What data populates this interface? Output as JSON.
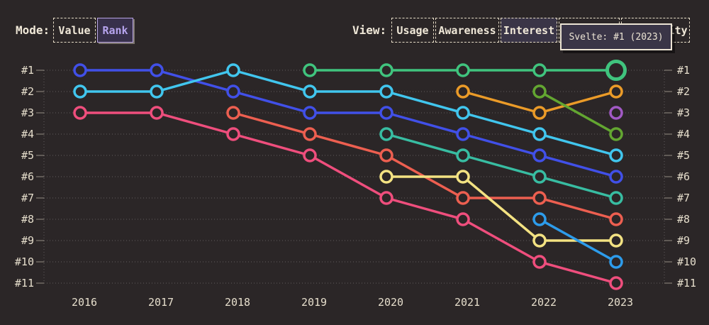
{
  "page": {
    "background": "#2b2627"
  },
  "header": {
    "mode": {
      "label": "Mode:",
      "options": [
        {
          "label": "Value",
          "selected": false
        },
        {
          "label": "Rank",
          "selected": true
        }
      ]
    },
    "view": {
      "label": "View:",
      "options": [
        {
          "label": "Usage",
          "selected": false
        },
        {
          "label": "Awareness",
          "selected": false
        },
        {
          "label": "Interest",
          "selected": true
        },
        {
          "label": "",
          "selected": false
        },
        {
          "label": "Positivity",
          "selected": false
        }
      ]
    }
  },
  "tooltip": {
    "text": "Svelte: #1 (2023)"
  },
  "chart_data": {
    "type": "line",
    "subtype": "bump-rank-chart",
    "x": [
      2016,
      2017,
      2018,
      2019,
      2020,
      2021,
      2022,
      2023
    ],
    "rank_labels": [
      "#1",
      "#2",
      "#3",
      "#4",
      "#5",
      "#6",
      "#7",
      "#8",
      "#9",
      "#10",
      "#11"
    ],
    "ylim": [
      1,
      11
    ],
    "y_axis_inverted": true,
    "grid": "dotted-horizontal-with-side-ticks",
    "marker": "open-circle",
    "series": [
      {
        "name": "blue",
        "color": "#4150e8",
        "points": [
          [
            2016,
            1
          ],
          [
            2017,
            1
          ],
          [
            2018,
            2
          ],
          [
            2019,
            3
          ],
          [
            2020,
            3
          ],
          [
            2021,
            4
          ],
          [
            2022,
            5
          ],
          [
            2023,
            6
          ]
        ]
      },
      {
        "name": "cyan",
        "color": "#41c6ee",
        "points": [
          [
            2016,
            2
          ],
          [
            2017,
            2
          ],
          [
            2018,
            1
          ],
          [
            2019,
            2
          ],
          [
            2020,
            2
          ],
          [
            2021,
            3
          ],
          [
            2022,
            4
          ],
          [
            2023,
            5
          ]
        ]
      },
      {
        "name": "pink",
        "color": "#ef4e7d",
        "points": [
          [
            2016,
            3
          ],
          [
            2017,
            3
          ],
          [
            2018,
            4
          ],
          [
            2019,
            5
          ],
          [
            2020,
            7
          ],
          [
            2021,
            8
          ],
          [
            2022,
            10
          ],
          [
            2023,
            11
          ]
        ]
      },
      {
        "name": "salmon",
        "color": "#ed5f50",
        "points": [
          [
            2018,
            3
          ],
          [
            2019,
            4
          ],
          [
            2020,
            5
          ],
          [
            2021,
            7
          ],
          [
            2022,
            7
          ],
          [
            2023,
            8
          ]
        ]
      },
      {
        "name": "svelte-green",
        "color": "#40c47e",
        "points": [
          [
            2019,
            1
          ],
          [
            2020,
            1
          ],
          [
            2021,
            1
          ],
          [
            2022,
            1
          ],
          [
            2023,
            1
          ]
        ]
      },
      {
        "name": "teal",
        "color": "#38bda2",
        "points": [
          [
            2020,
            4
          ],
          [
            2021,
            5
          ],
          [
            2022,
            6
          ],
          [
            2023,
            7
          ]
        ]
      },
      {
        "name": "yellow",
        "color": "#f3e282",
        "points": [
          [
            2020,
            6
          ],
          [
            2021,
            6
          ],
          [
            2022,
            9
          ],
          [
            2023,
            9
          ]
        ]
      },
      {
        "name": "orange",
        "color": "#eb9b28",
        "points": [
          [
            2021,
            2
          ],
          [
            2022,
            3
          ],
          [
            2023,
            2
          ]
        ]
      },
      {
        "name": "olive-green",
        "color": "#63a631",
        "points": [
          [
            2022,
            2
          ],
          [
            2023,
            4
          ]
        ]
      },
      {
        "name": "azure",
        "color": "#2d9ceb",
        "points": [
          [
            2022,
            8
          ],
          [
            2023,
            10
          ]
        ]
      },
      {
        "name": "purple",
        "color": "#a159c4",
        "points": [
          [
            2023,
            3
          ]
        ]
      }
    ],
    "highlight": {
      "series": "svelte-green",
      "year": 2023,
      "tooltip": "Svelte: #1 (2023)"
    }
  }
}
